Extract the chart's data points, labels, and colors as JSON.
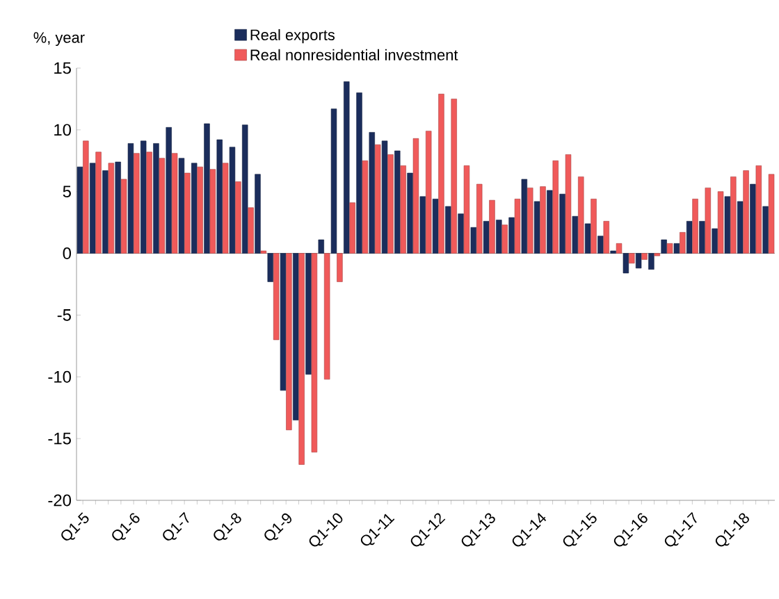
{
  "chart_data": {
    "type": "bar",
    "ylabel": "%, year",
    "categories": [
      "Q1-5",
      null,
      null,
      null,
      "Q1-6",
      null,
      null,
      null,
      "Q1-7",
      null,
      null,
      null,
      "Q1-8",
      null,
      null,
      null,
      "Q1-9",
      null,
      null,
      null,
      "Q1-10",
      null,
      null,
      null,
      "Q1-11",
      null,
      null,
      null,
      "Q1-12",
      null,
      null,
      null,
      "Q1-13",
      null,
      null,
      null,
      "Q1-14",
      null,
      null,
      null,
      "Q1-15",
      null,
      null,
      null,
      "Q1-16",
      null,
      null,
      null,
      "Q1-17",
      null,
      null,
      null,
      "Q1-18",
      null,
      null
    ],
    "series": [
      {
        "name": "Real exports",
        "color": "#1b2d5c",
        "values": [
          7.0,
          7.3,
          6.7,
          7.4,
          8.9,
          9.1,
          8.9,
          10.2,
          7.7,
          7.3,
          10.5,
          9.2,
          8.6,
          10.4,
          6.4,
          -2.3,
          -11.1,
          -13.5,
          -9.8,
          1.1,
          11.7,
          13.9,
          13.0,
          9.8,
          9.1,
          8.3,
          6.5,
          4.6,
          4.4,
          3.8,
          3.2,
          2.1,
          2.6,
          2.7,
          2.9,
          6.0,
          4.2,
          5.1,
          4.8,
          3.0,
          2.4,
          1.4,
          0.2,
          -1.6,
          -1.2,
          -1.3,
          1.1,
          0.8,
          2.6,
          2.6,
          2.0,
          4.6,
          4.2,
          5.6,
          3.8
        ]
      },
      {
        "name": "Real nonresidential investment",
        "color": "#f05a5a",
        "values": [
          9.1,
          8.2,
          7.3,
          6.0,
          8.1,
          8.2,
          7.7,
          8.1,
          6.5,
          7.0,
          6.8,
          7.3,
          5.8,
          3.7,
          0.2,
          -7.0,
          -14.3,
          -17.1,
          -16.1,
          -10.2,
          -2.3,
          4.1,
          7.5,
          8.8,
          8.0,
          7.1,
          9.3,
          9.9,
          12.9,
          12.5,
          7.1,
          5.6,
          4.3,
          2.3,
          4.4,
          5.3,
          5.4,
          7.5,
          8.0,
          6.2,
          4.4,
          2.6,
          0.8,
          -0.8,
          -0.5,
          -0.2,
          0.8,
          1.7,
          4.4,
          5.3,
          5.0,
          6.2,
          6.7,
          7.1,
          6.4
        ]
      }
    ],
    "ylim": [
      -20,
      15
    ],
    "yticks": [
      -20,
      -15,
      -10,
      -5,
      0,
      5,
      10,
      15
    ],
    "legend": "top"
  }
}
